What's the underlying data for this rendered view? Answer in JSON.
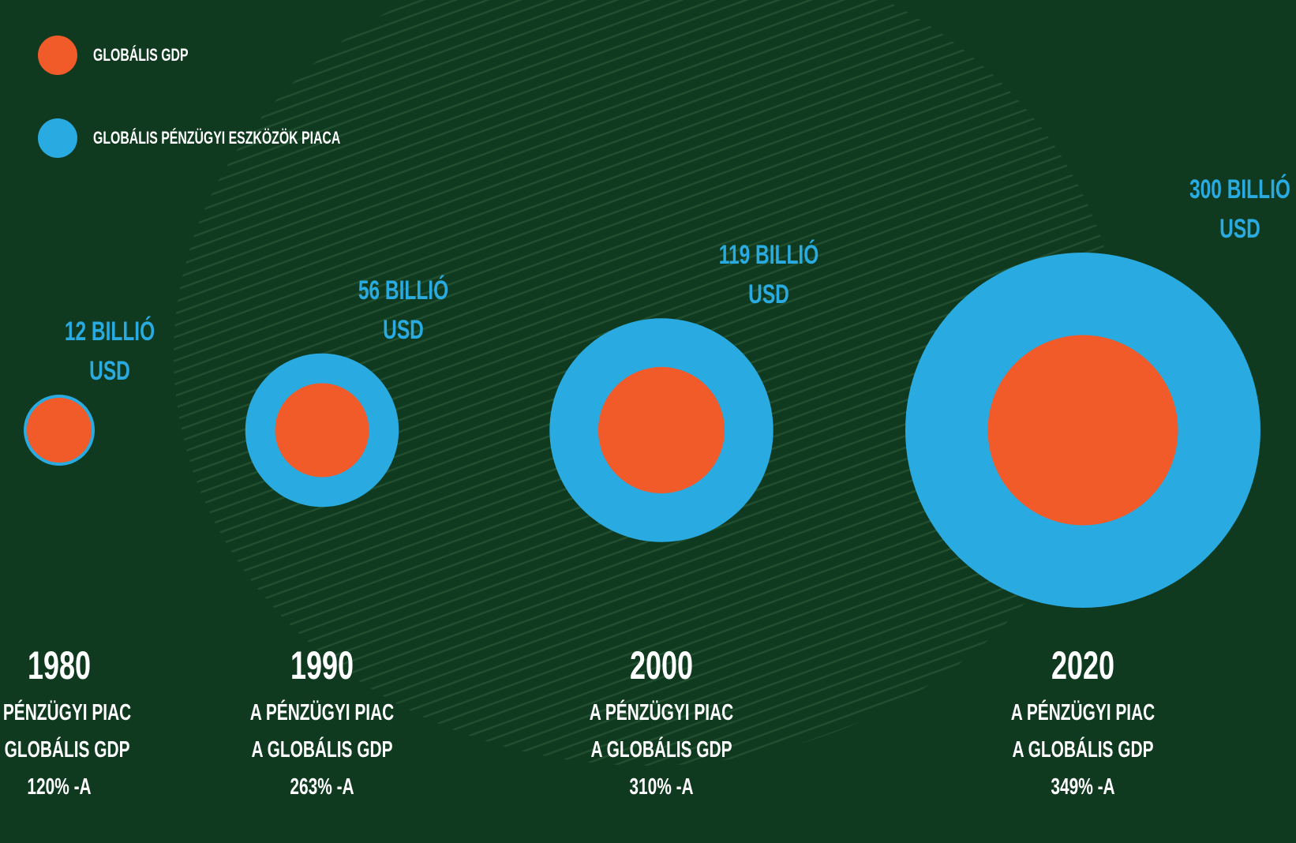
{
  "chart_data": {
    "type": "bubble",
    "categories": [
      "1980",
      "1990",
      "2000",
      "2020"
    ],
    "series": [
      {
        "name": "GLOBÁLIS GDP",
        "color": "#f15a29",
        "values": [
          10,
          21,
          38,
          86
        ]
      },
      {
        "name": "GLOBÁLIS PÉNZÜGYI ESZKÖZÖK PIACA",
        "color": "#29abe2",
        "values": [
          12,
          56,
          119,
          300
        ],
        "value_labels": [
          "12 BILLIÓ USD",
          "56 BILLIÓ USD",
          "119 BILLIÓ USD",
          "300 BILLIÓ USD"
        ]
      }
    ],
    "captions": [
      [
        "A PÉNZÜGYI PIAC",
        "A GLOBÁLIS GDP",
        "120% -A"
      ],
      [
        "A PÉNZÜGYI PIAC",
        "A GLOBÁLIS GDP",
        "263% -A"
      ],
      [
        "A PÉNZÜGYI PIAC",
        "A GLOBÁLIS GDP",
        "310% -A"
      ],
      [
        "A PÉNZÜGYI PIAC",
        "A GLOBÁLIS GDP",
        "349% -A"
      ]
    ]
  }
}
